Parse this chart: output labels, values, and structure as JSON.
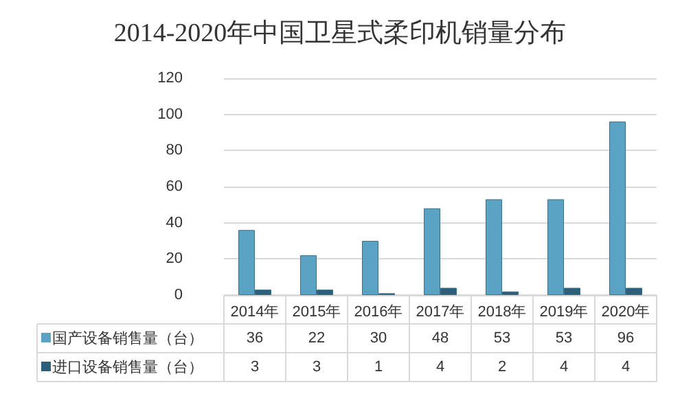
{
  "chart_data": {
    "type": "bar",
    "title": "2014-2020年中国卫星式柔印机销量分布",
    "categories": [
      "2014年",
      "2015年",
      "2016年",
      "2017年",
      "2018年",
      "2019年",
      "2020年"
    ],
    "series": [
      {
        "name": "国产设备销售量（台）",
        "color": "#5ba3c4",
        "values": [
          36,
          22,
          30,
          48,
          53,
          53,
          96
        ]
      },
      {
        "name": "进口设备销售量（台）",
        "color": "#2e5f7a",
        "values": [
          3,
          3,
          1,
          4,
          2,
          4,
          4
        ]
      }
    ],
    "ylim": [
      0,
      120
    ],
    "yticks": [
      0,
      20,
      40,
      60,
      80,
      100,
      120
    ],
    "grid": "y",
    "legend": "bottom",
    "data_labels": true
  }
}
